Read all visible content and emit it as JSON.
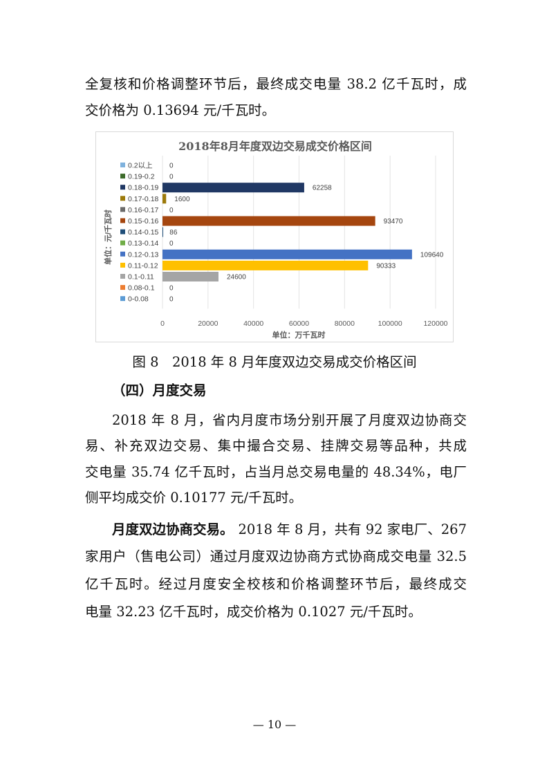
{
  "lines_top": [
    "全复核和价格调整环节后，最终成交电量 38.2 亿千瓦时，成",
    "交价格为 0.13694 元/千瓦时。"
  ],
  "figure_caption": "图 8　2018 年 8 月年度双边交易成交价格区间",
  "section_heading": "（四）月度交易",
  "para1": [
    "2018 年 8 月，省内月度市场分别开展了月度双边协商交",
    "易、补充双边交易、集中撮合交易、挂牌交易等品种，共成",
    "交电量 35.74 亿千瓦时，占当月总交易电量的 48.34%，电厂",
    "侧平均成交价 0.10177 元/千瓦时。"
  ],
  "para2_bold": "月度双边协商交易。",
  "para2": [
    "2018 年 8 月，共有 92 家电厂、267",
    "家用户（售电公司）通过月度双边协商方式协商成交电量 32.5",
    "亿千瓦时。经过月度安全校核和价格调整环节后，最终成交",
    "电量 32.23 亿千瓦时，成交价格为 0.1027 元/千瓦时。"
  ],
  "page_number": "— 10 —",
  "chart_data": {
    "type": "bar",
    "orientation": "horizontal",
    "title": "2018年8月年度双边交易成交价格区间",
    "xlabel": "单位：万千瓦时",
    "ylabel": "单位：元/千瓦时",
    "xlim": [
      0,
      120000
    ],
    "xticks": [
      "0",
      "20000",
      "40000",
      "60000",
      "80000",
      "100000",
      "120000"
    ],
    "grid": true,
    "legend_position": "left",
    "categories": [
      "0.2以上",
      "0.19-0.2",
      "0.18-0.19",
      "0.17-0.18",
      "0.16-0.17",
      "0.15-0.16",
      "0.14-0.15",
      "0.13-0.14",
      "0.12-0.13",
      "0.11-0.12",
      "0.1-0.11",
      "0.08-0.1",
      "0-0.08"
    ],
    "values": [
      0,
      0,
      62258,
      1600,
      0,
      93470,
      86,
      0,
      109640,
      90333,
      24600,
      0,
      0
    ],
    "colors": [
      "#7fb2dd",
      "#3d6b2a",
      "#203864",
      "#9c7a0a",
      "#6b6b6b",
      "#a5460f",
      "#1f4e79",
      "#70ad47",
      "#4472c4",
      "#ffc000",
      "#a5a5a5",
      "#ed7d31",
      "#5b9bd5"
    ]
  }
}
